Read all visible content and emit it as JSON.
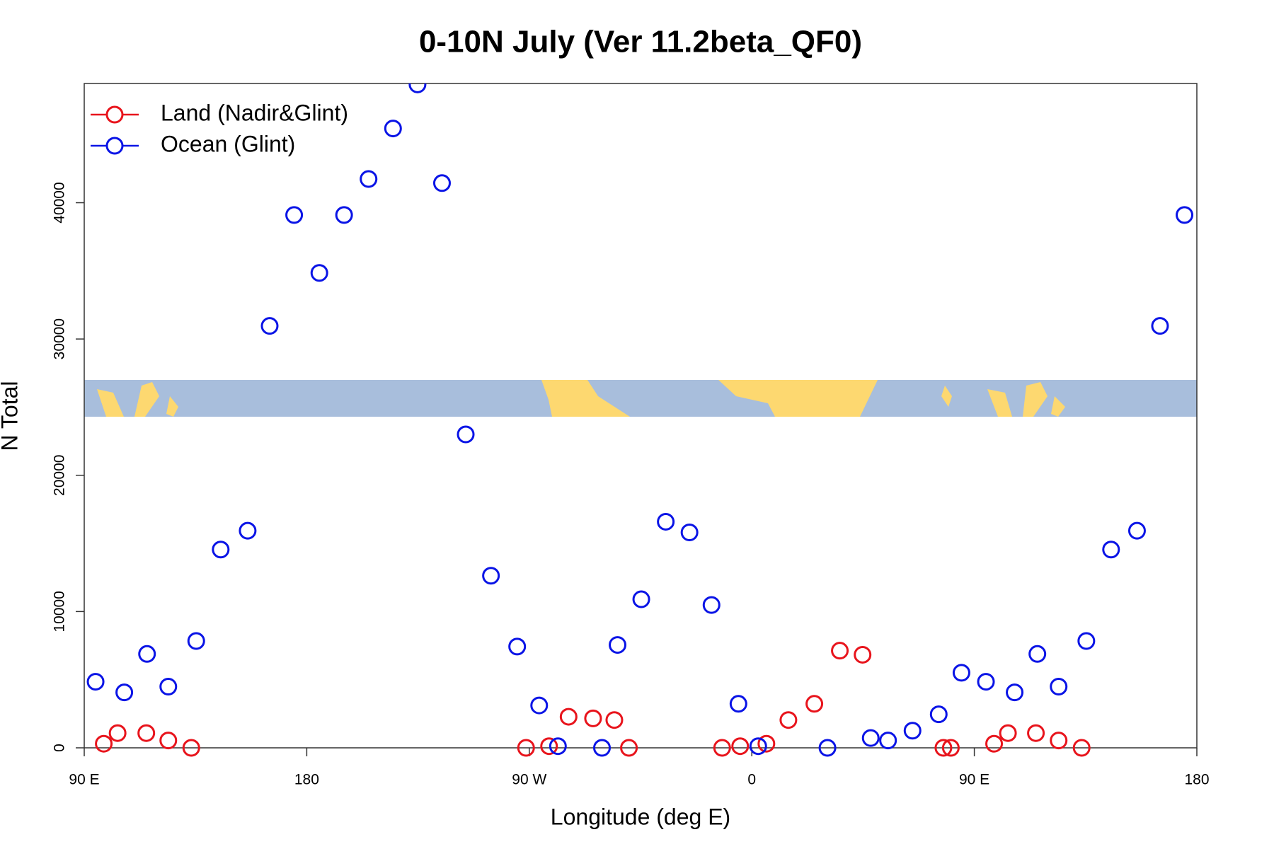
{
  "chart_data": {
    "type": "scatter",
    "title": "0-10N July (Ver 11.2beta_QF0)",
    "x_label": "Longitude (deg E)",
    "y_label": "N Total",
    "xlim": [
      90,
      540
    ],
    "ylim": [
      0,
      48750
    ],
    "xticks": [
      {
        "value": 90,
        "label": "90 E"
      },
      180,
      {
        "value": 270,
        "label": "90 W"
      },
      {
        "value": 360,
        "label": "0"
      },
      {
        "value": 450,
        "label": "90 E"
      },
      {
        "value": 540,
        "label": "180"
      }
    ],
    "yticks": [
      0,
      10000,
      20000,
      30000,
      40000
    ],
    "legend": "top-left",
    "series": [
      {
        "name": "Land (Nadir&Glint)",
        "color": "#e8141c",
        "x": [
          97.9,
          103.5,
          115.1,
          124,
          133.3,
          268.7,
          278,
          285.9,
          295.8,
          304.4,
          310.3,
          348,
          355.3,
          365.9,
          374.8,
          385.3,
          395.6,
          404.8,
          437.5,
          440.5,
          458,
          463.6,
          474.9,
          484.1,
          493.4
        ],
        "values": [
          300,
          1080,
          1080,
          540,
          0,
          0,
          120,
          2280,
          2160,
          2040,
          0,
          0,
          120,
          300,
          2040,
          3230,
          7130,
          6830,
          0,
          0,
          300,
          1080,
          1080,
          540,
          0
        ]
      },
      {
        "name": "Ocean (Glint)",
        "color": "#0a14e6",
        "x": [
          94.6,
          106.2,
          115.4,
          124,
          135.3,
          145.2,
          156.1,
          165,
          174.9,
          185.1,
          195.1,
          205,
          214.9,
          224.8,
          234.7,
          244.3,
          254.5,
          265.1,
          274,
          281.6,
          299.4,
          305.7,
          315.3,
          325.2,
          334.8,
          343.7,
          354.6,
          362.6,
          390.6,
          408.1,
          415.1,
          425,
          435.6,
          444.8,
          454.7,
          466.3,
          475.5,
          484.1,
          495.3,
          505.3,
          515.8,
          525.1,
          535
        ],
        "values": [
          4850,
          4070,
          6890,
          4490,
          7840,
          14550,
          15930,
          30960,
          39100,
          34850,
          39100,
          41740,
          45450,
          48680,
          41440,
          23000,
          12630,
          7430,
          3110,
          120,
          0,
          7550,
          10900,
          16590,
          15810,
          10480,
          3230,
          120,
          0,
          720,
          540,
          1260,
          2460,
          5510,
          4850,
          4070,
          6890,
          4490,
          7840,
          14550,
          15930,
          30960,
          39100
        ]
      }
    ]
  }
}
